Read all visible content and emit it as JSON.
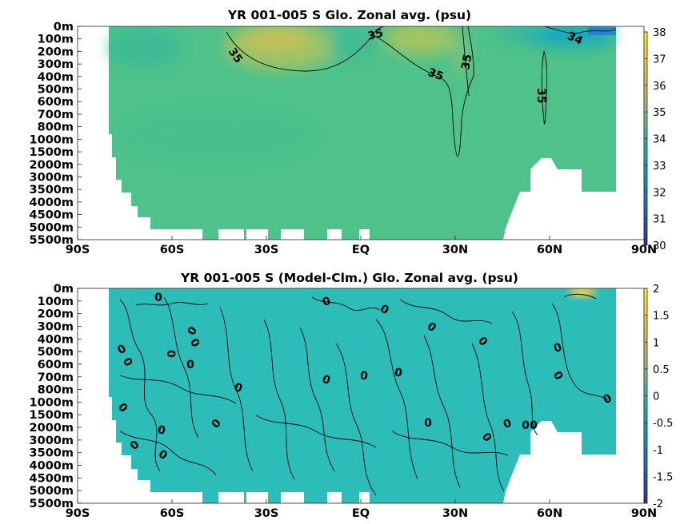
{
  "chart_data": [
    {
      "type": "heatmap",
      "title": "YR 001-005 S Glo. Zonal avg. (psu)",
      "x_tick_labels": [
        "90S",
        "60S",
        "30S",
        "EQ",
        "30N",
        "60N",
        "90N"
      ],
      "x_ticks_lat": [
        -90,
        -60,
        -30,
        0,
        30,
        60,
        90
      ],
      "y_tick_labels": [
        "0m",
        "100m",
        "200m",
        "300m",
        "400m",
        "500m",
        "600m",
        "700m",
        "800m",
        "1000m",
        "1500m",
        "2000m",
        "3000m",
        "3500m",
        "4000m",
        "4500m",
        "5000m",
        "5500m"
      ],
      "colorbar": {
        "min": 30,
        "max": 38,
        "tick_labels": [
          "38",
          "37",
          "36",
          "35",
          "34",
          "33",
          "32",
          "31",
          "30"
        ],
        "colormap": "parula"
      },
      "contour_labels": [
        "35",
        "35",
        "35",
        "35",
        "35",
        "34"
      ],
      "approx_values": {
        "ocean_interior": 34.7,
        "subtropical_surface_max": 36.5,
        "arctic_surface_min": 32.5
      }
    },
    {
      "type": "heatmap",
      "title": "YR 001-005 S (Model-Clm.) Glo. Zonal avg. (psu)",
      "x_tick_labels": [
        "90S",
        "60S",
        "30S",
        "EQ",
        "30N",
        "60N",
        "90N"
      ],
      "x_ticks_lat": [
        -90,
        -60,
        -30,
        0,
        30,
        60,
        90
      ],
      "y_tick_labels": [
        "0m",
        "100m",
        "200m",
        "300m",
        "400m",
        "500m",
        "600m",
        "700m",
        "800m",
        "1000m",
        "1500m",
        "2000m",
        "3000m",
        "3500m",
        "4000m",
        "4500m",
        "5000m",
        "5500m"
      ],
      "colorbar": {
        "min": -2,
        "max": 2,
        "tick_labels": [
          "2",
          "1.5",
          "1",
          "0.5",
          "0",
          "-0.5",
          "-1",
          "-1.5",
          "-2"
        ],
        "colormap": "parula"
      },
      "contour_labels": [
        "0",
        "0",
        "0",
        "0",
        "0",
        "0",
        "0",
        "0",
        "0",
        "0",
        "0",
        "0",
        "0",
        "0",
        "0",
        "0",
        "0",
        "0",
        "0",
        "0",
        "0",
        "0",
        "0",
        "0",
        "0",
        "0",
        "0",
        "0"
      ],
      "approx_values": {
        "ocean_interior": 0.0,
        "arctic_surface_anomaly": 1.5
      }
    }
  ]
}
